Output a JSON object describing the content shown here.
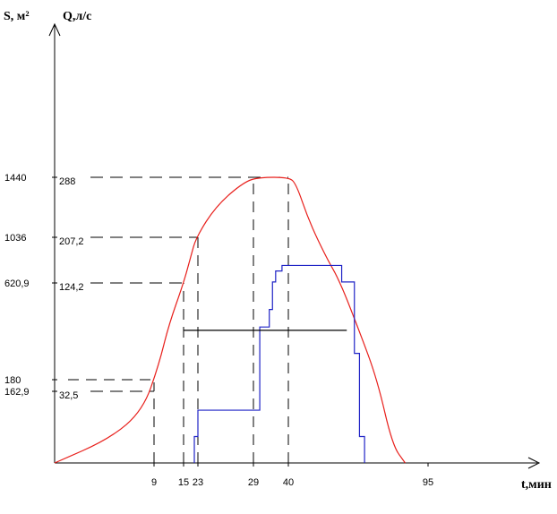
{
  "chart_data": {
    "type": "line",
    "title": "",
    "ylabel_area": "S, м²",
    "ylabel_flow": "Q,л/с",
    "xlabel": "t,мин",
    "x_ticks": [
      {
        "value": 9,
        "label": "9"
      },
      {
        "value": 15,
        "label": "15"
      },
      {
        "value": 23,
        "label": "23"
      },
      {
        "value": 29,
        "label": "29"
      },
      {
        "value": 40,
        "label": "40"
      },
      {
        "value": 95,
        "label": "95"
      }
    ],
    "y_ticks": [
      {
        "value": 1440,
        "area_label": "1440",
        "flow_label": "288"
      },
      {
        "value": 1036,
        "area_label": "1036",
        "flow_label": "207,2"
      },
      {
        "value": 620.9,
        "area_label": "620,9",
        "flow_label": "124,2"
      },
      {
        "value": 180,
        "area_label": "180",
        "flow_label": ""
      },
      {
        "value": 162.9,
        "area_label": "162,9",
        "flow_label": "32,5"
      }
    ],
    "series": [
      {
        "color": "#e8201c",
        "style": "curve",
        "points": [
          [
            0,
            0
          ],
          [
            5,
            55
          ],
          [
            8,
            120
          ],
          [
            10,
            250
          ],
          [
            12,
            430
          ],
          [
            15,
            620.9
          ],
          [
            19,
            860
          ],
          [
            22,
            1036
          ],
          [
            25,
            1250
          ],
          [
            28,
            1410
          ],
          [
            31,
            1440
          ],
          [
            40,
            1440
          ],
          [
            43,
            1400
          ],
          [
            48,
            1150
          ],
          [
            55,
            850
          ],
          [
            60,
            650
          ],
          [
            68,
            400
          ],
          [
            75,
            180
          ],
          [
            81,
            40
          ],
          [
            86,
            0
          ]
        ]
      },
      {
        "color": "#1f23c6",
        "style": "step",
        "points": [
          [
            21,
            0
          ],
          [
            21,
            60
          ],
          [
            23,
            60
          ],
          [
            23,
            120
          ],
          [
            31,
            120
          ],
          [
            31,
            420
          ],
          [
            34,
            420
          ],
          [
            34,
            500
          ],
          [
            35,
            500
          ],
          [
            35,
            630
          ],
          [
            36,
            630
          ],
          [
            36,
            730
          ],
          [
            38,
            730
          ],
          [
            38,
            780
          ],
          [
            61,
            780
          ],
          [
            61,
            630
          ],
          [
            66,
            630
          ],
          [
            66,
            300
          ],
          [
            68,
            300
          ],
          [
            68,
            60
          ],
          [
            70,
            60
          ],
          [
            70,
            0
          ]
        ]
      },
      {
        "color": "#000000",
        "style": "line",
        "points": [
          [
            15,
            405
          ],
          [
            63,
            405
          ]
        ]
      }
    ]
  }
}
